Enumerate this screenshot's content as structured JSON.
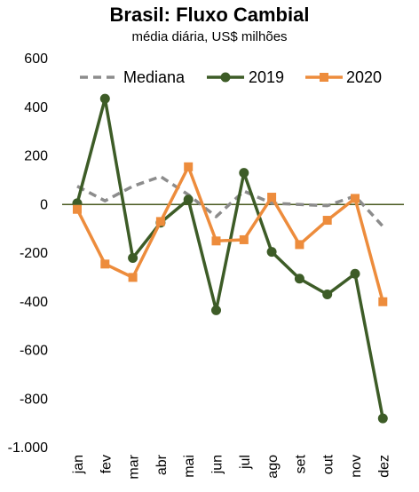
{
  "chart_data": {
    "type": "line",
    "title": "Brasil: Fluxo Cambial",
    "subtitle": "média diária, US$ milhões",
    "xlabel": "",
    "ylabel": "",
    "categories": [
      "jan",
      "fev",
      "mar",
      "abr",
      "mai",
      "jun",
      "jul",
      "ago",
      "set",
      "out",
      "nov",
      "dez"
    ],
    "ylim": [
      -1000,
      600
    ],
    "yticks": [
      600,
      400,
      200,
      0,
      -200,
      -400,
      -600,
      -800,
      -1000
    ],
    "ytick_labels": [
      "600",
      "400",
      "200",
      "0",
      "-200",
      "-400",
      "-600",
      "-800",
      "-1.000"
    ],
    "grid": false,
    "legend_position": "top",
    "series": [
      {
        "name": "Mediana",
        "color": "#8c8c8c",
        "style": "dashed",
        "marker": "none",
        "values": [
          75,
          15,
          75,
          115,
          40,
          -50,
          55,
          5,
          0,
          -5,
          35,
          -90
        ]
      },
      {
        "name": "2019",
        "color": "#3d5c27",
        "style": "solid",
        "marker": "circle",
        "values": [
          5,
          435,
          -220,
          -75,
          20,
          -435,
          130,
          -195,
          -305,
          -370,
          -285,
          -880
        ]
      },
      {
        "name": "2020",
        "color": "#ed8c3c",
        "style": "solid",
        "marker": "square",
        "values": [
          -20,
          -245,
          -300,
          -70,
          155,
          -150,
          -145,
          30,
          -165,
          -65,
          25,
          -400
        ]
      }
    ],
    "zero_line_color": "#4a5a20"
  }
}
